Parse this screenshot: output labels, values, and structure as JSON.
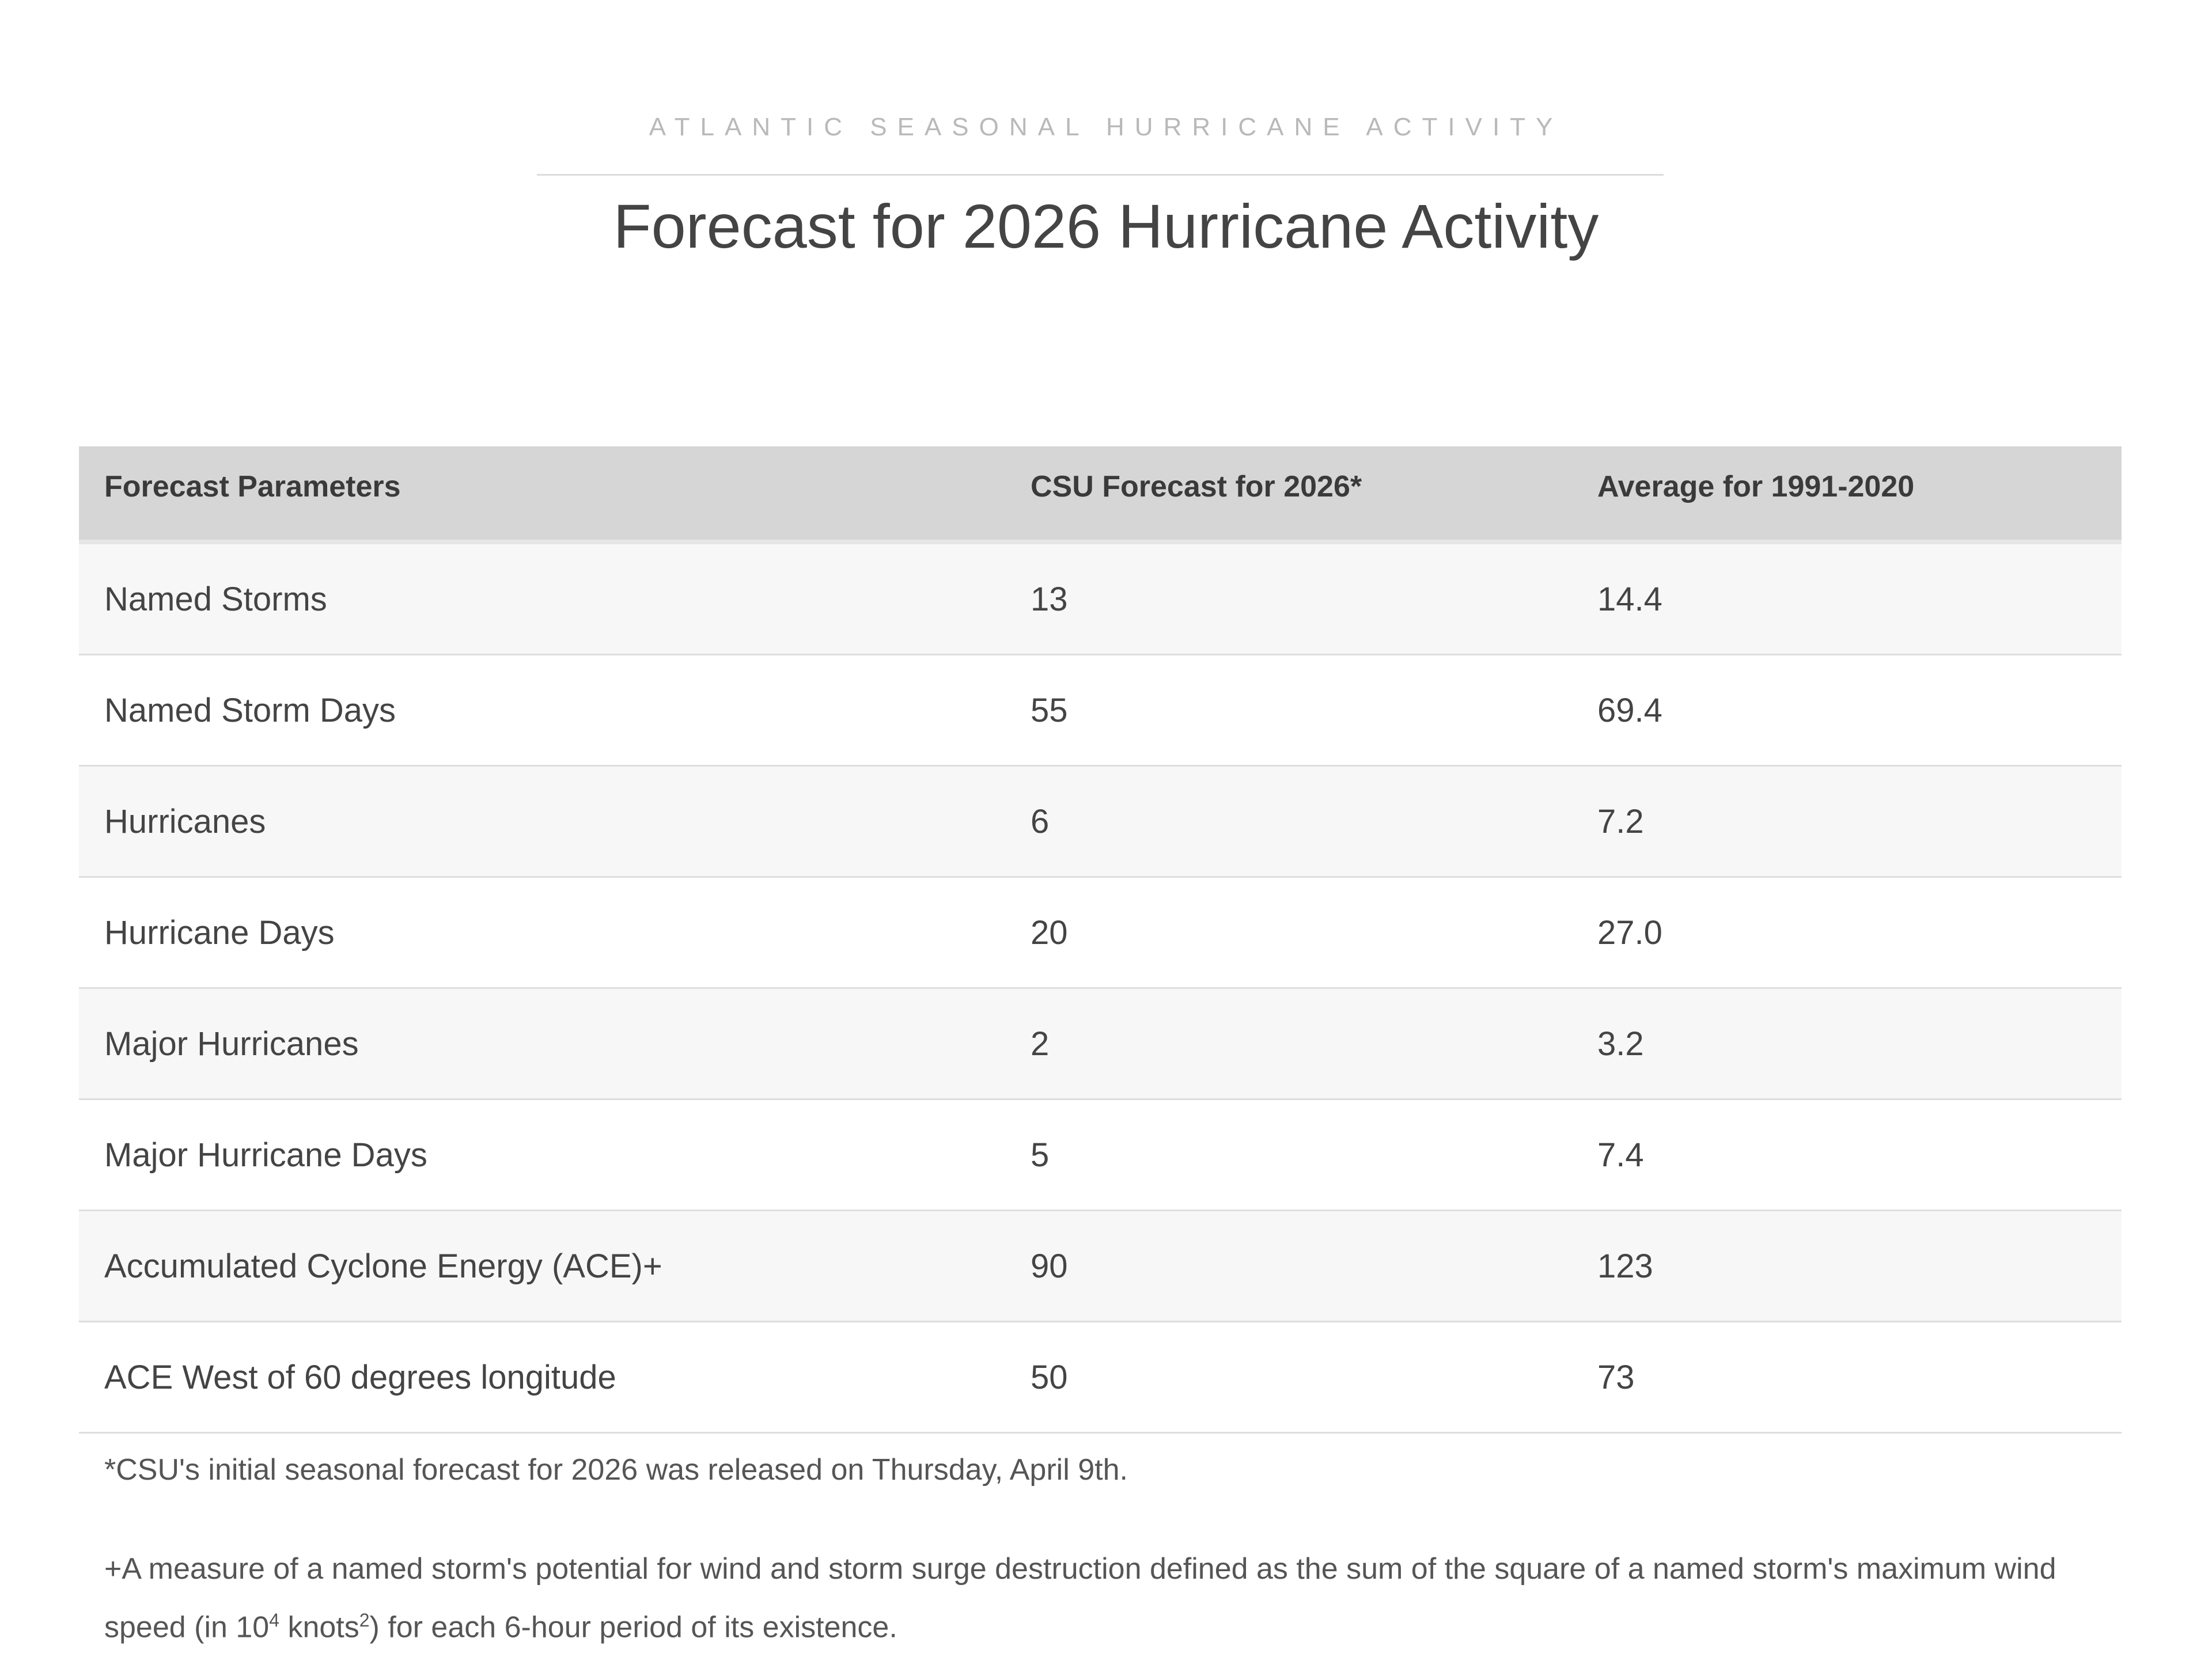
{
  "header": {
    "kicker": "ATLANTIC SEASONAL HURRICANE ACTIVITY",
    "title": "Forecast for 2026 Hurricane Activity"
  },
  "table": {
    "columns": [
      "Forecast Parameters",
      "CSU Forecast for 2026*",
      "Average for 1991-2020"
    ],
    "rows": [
      [
        "Named Storms",
        "13",
        "14.4"
      ],
      [
        "Named Storm Days",
        "55",
        "69.4"
      ],
      [
        "Hurricanes",
        "6",
        "7.2"
      ],
      [
        "Hurricane Days",
        "20",
        "27.0"
      ],
      [
        "Major Hurricanes",
        "2",
        "3.2"
      ],
      [
        "Major Hurricane Days",
        "5",
        "7.4"
      ],
      [
        "Accumulated Cyclone Energy (ACE)+",
        "90",
        "123"
      ],
      [
        "ACE West of 60 degrees longitude",
        "50",
        "73"
      ]
    ]
  },
  "footnotes": [
    "*CSU's initial seasonal forecast for 2026 was released on Thursday, April 9th.",
    [
      "+A measure of a named storm's potential for wind and storm surge destruction defined as the sum of the square of a named storm's maximum wind speed (in 10",
      "4",
      " knots",
      "2",
      ") for each 6-hour period of its existence."
    ]
  ]
}
